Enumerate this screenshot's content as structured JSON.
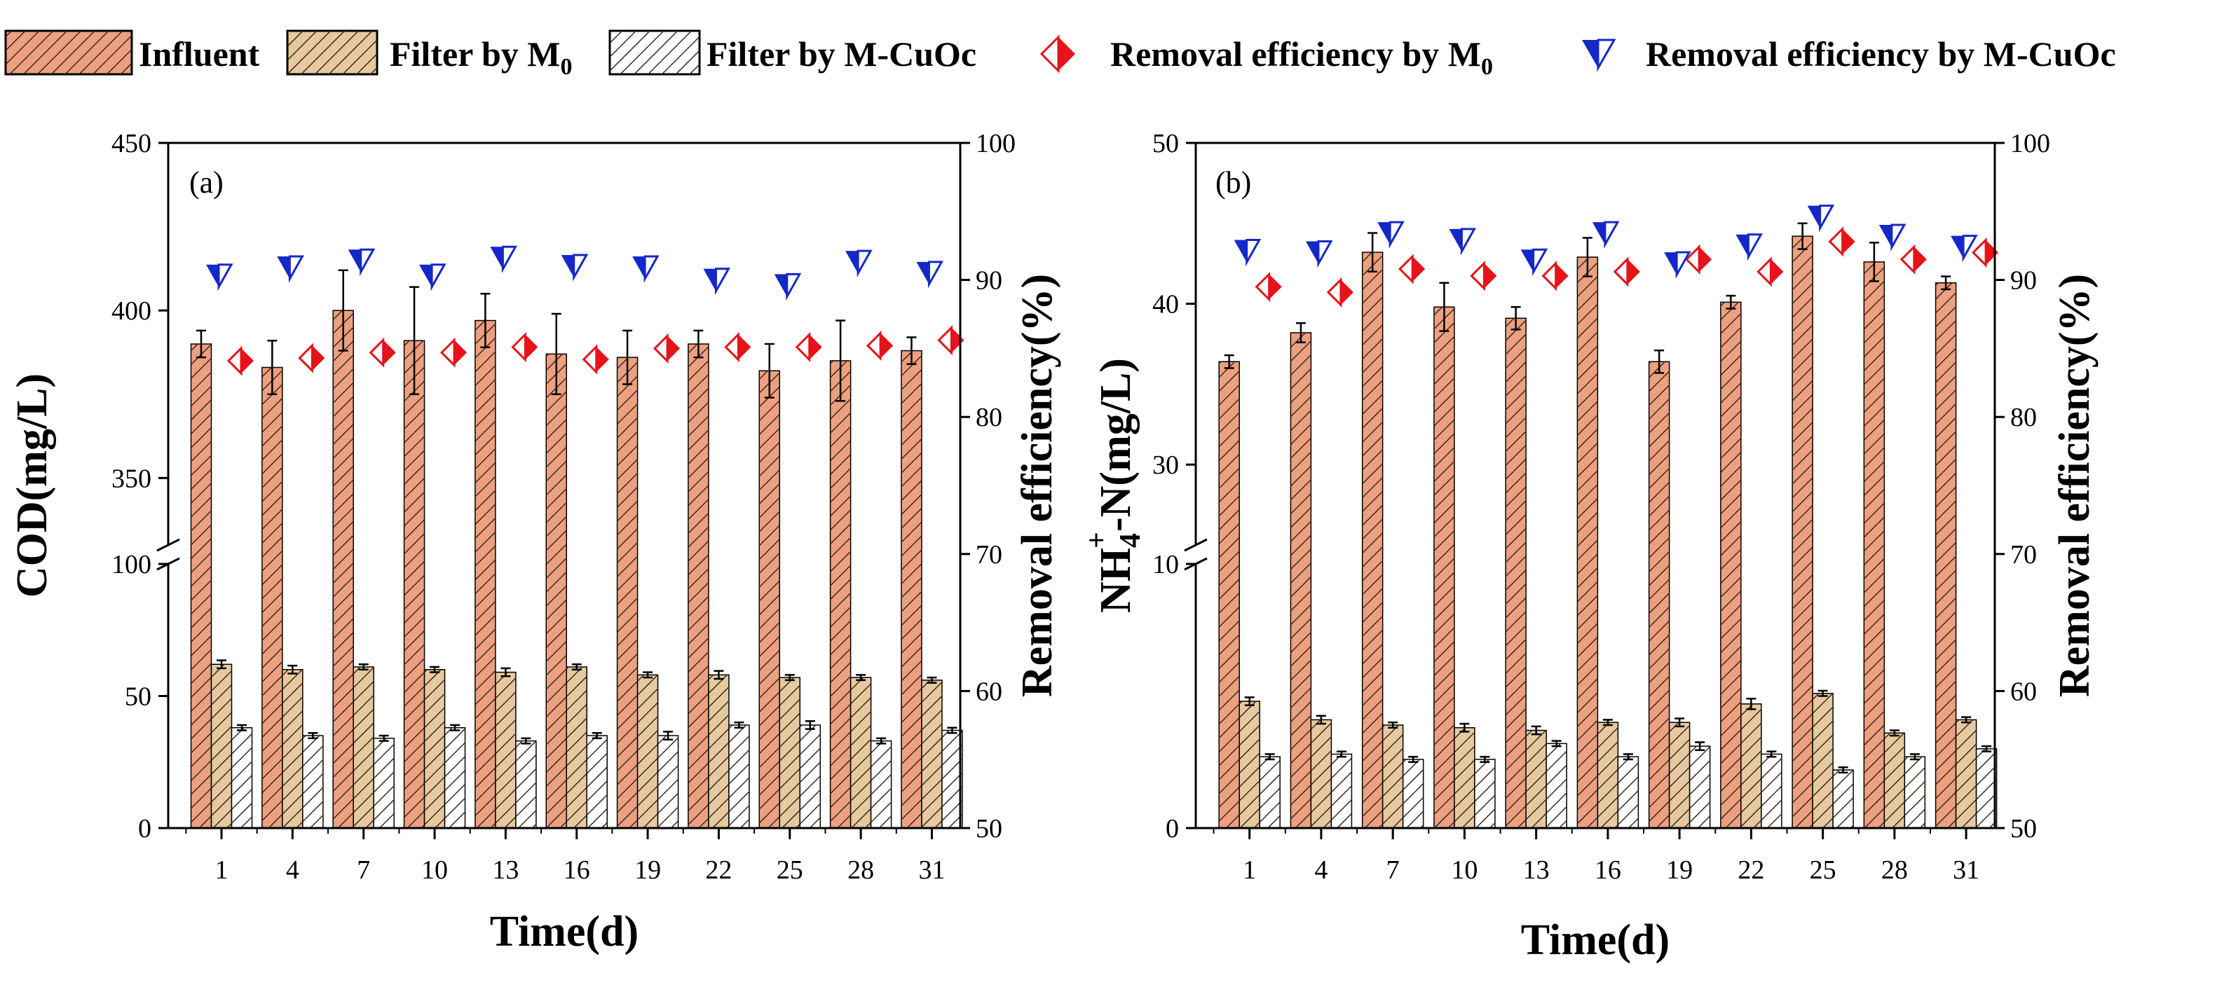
{
  "legend": {
    "influent": "Influent",
    "filter_m0_prefix": "Filter by M",
    "filter_m0_sub": "0",
    "filter_mcuoc": "Filter by M-CuOc",
    "removal_m0_prefix": "Removal efficiency by M",
    "removal_m0_sub": "0",
    "removal_mcuoc": "Removal efficiency by M-CuOc"
  },
  "colors": {
    "influent_fill": "#EDA07F",
    "m0_fill": "#E6C99F",
    "mcuoc_fill": "#FFFFFF",
    "hatch": "#3b2a20",
    "removal_m0_marker": "#E8121A",
    "removal_mcuoc_marker": "#1428C8"
  },
  "chart_data": [
    {
      "type": "bar",
      "panel_label": "(a)",
      "xlabel": "Time(d)",
      "ylabel": "COD(mg/L)",
      "y2label": "Removal efficiency(%)",
      "categories": [
        "1",
        "4",
        "7",
        "10",
        "13",
        "16",
        "19",
        "22",
        "25",
        "28",
        "31"
      ],
      "y_break": {
        "lower": [
          0,
          100
        ],
        "upper": [
          330,
          450
        ]
      },
      "y_lower_ticks": [
        "0",
        "50",
        "100"
      ],
      "y_upper_ticks": [
        "350",
        "400",
        "450"
      ],
      "y2lim": [
        50,
        100
      ],
      "y2_ticks": [
        "50",
        "60",
        "70",
        "80",
        "90",
        "100"
      ],
      "series": [
        {
          "name": "Influent",
          "values": [
            390,
            383,
            400,
            391,
            397,
            387,
            386,
            390,
            382,
            385,
            388
          ],
          "errors": [
            4,
            8,
            12,
            16,
            8,
            12,
            8,
            4,
            8,
            12,
            4
          ]
        },
        {
          "name": "Filter by M0",
          "values": [
            62,
            60,
            61,
            60,
            59,
            61,
            58,
            58,
            57,
            57,
            56
          ],
          "errors": [
            1.5,
            1.5,
            1,
            1,
            1.5,
            1,
            1,
            1.5,
            1,
            1,
            1
          ]
        },
        {
          "name": "Filter by M-CuOc",
          "values": [
            38,
            35,
            34,
            38,
            33,
            35,
            35,
            39,
            39,
            33,
            37
          ],
          "errors": [
            1,
            1,
            1,
            1,
            1,
            1,
            1.5,
            1,
            1.5,
            1,
            1
          ]
        },
        {
          "name": "Removal efficiency by M0",
          "axis": "right",
          "values": [
            84.1,
            84.3,
            84.7,
            84.7,
            85.1,
            84.2,
            85.0,
            85.1,
            85.1,
            85.2,
            85.6
          ]
        },
        {
          "name": "Removal efficiency by M-CuOc",
          "axis": "right",
          "values": [
            90.3,
            90.9,
            91.4,
            90.3,
            91.6,
            91.0,
            90.9,
            90.0,
            89.6,
            91.3,
            90.5
          ]
        }
      ]
    },
    {
      "type": "bar",
      "panel_label": "(b)",
      "xlabel": "Time(d)",
      "ylabel_parts": [
        "NH",
        "4",
        "+",
        "-N(mg/L)"
      ],
      "y2label": "Removal efficiency(%)",
      "categories": [
        "1",
        "4",
        "7",
        "10",
        "13",
        "16",
        "19",
        "22",
        "25",
        "28",
        "31"
      ],
      "y_break": {
        "lower": [
          0,
          10
        ],
        "upper": [
          25,
          50
        ]
      },
      "y_lower_ticks": [
        "0",
        "10"
      ],
      "y_upper_ticks": [
        "30",
        "40",
        "50"
      ],
      "y2lim": [
        50,
        100
      ],
      "y2_ticks": [
        "50",
        "60",
        "70",
        "80",
        "90",
        "100"
      ],
      "series": [
        {
          "name": "Influent",
          "values": [
            36.4,
            38.2,
            43.2,
            39.8,
            39.1,
            42.9,
            36.4,
            40.1,
            44.2,
            42.6,
            41.3
          ],
          "errors": [
            0.4,
            0.6,
            1.2,
            1.5,
            0.7,
            1.2,
            0.7,
            0.4,
            0.8,
            1.2,
            0.4
          ]
        },
        {
          "name": "Filter by M0",
          "values": [
            4.8,
            4.1,
            3.9,
            3.8,
            3.7,
            4.0,
            4.0,
            4.7,
            5.1,
            3.6,
            4.1
          ],
          "errors": [
            0.15,
            0.15,
            0.1,
            0.15,
            0.15,
            0.1,
            0.15,
            0.2,
            0.1,
            0.1,
            0.1
          ]
        },
        {
          "name": "Filter by M-CuOc",
          "values": [
            2.7,
            2.8,
            2.6,
            2.6,
            3.2,
            2.7,
            3.1,
            2.8,
            2.2,
            2.7,
            3.0
          ],
          "errors": [
            0.1,
            0.1,
            0.1,
            0.1,
            0.1,
            0.1,
            0.15,
            0.1,
            0.1,
            0.1,
            0.1
          ]
        },
        {
          "name": "Removal efficiency by M0",
          "axis": "right",
          "values": [
            89.5,
            89.1,
            90.8,
            90.3,
            90.3,
            90.6,
            91.5,
            90.6,
            92.8,
            91.5,
            92.0
          ]
        },
        {
          "name": "Removal efficiency by M-CuOc",
          "axis": "right",
          "values": [
            92.1,
            92.0,
            93.4,
            92.9,
            91.4,
            93.4,
            91.2,
            92.5,
            94.6,
            93.2,
            92.4
          ]
        }
      ]
    }
  ]
}
